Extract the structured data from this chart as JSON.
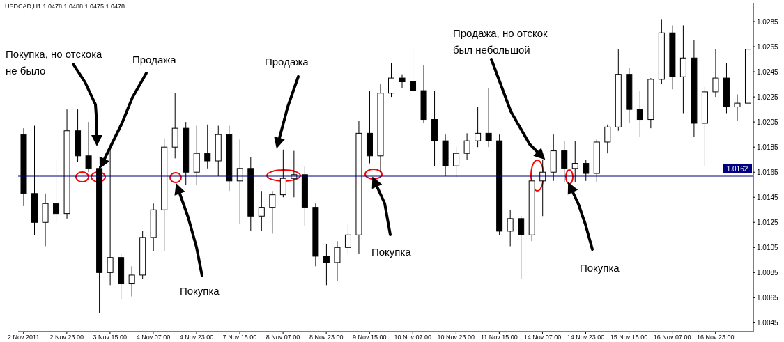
{
  "chart_data": {
    "type": "candlestick",
    "title": "USDCAD,H1  1.0478 1.0488 1.0475 1.0478",
    "categories": [
      "2 Nov 2011",
      null,
      null,
      null,
      "2 Nov 23:00",
      null,
      null,
      null,
      "3 Nov 15:00",
      null,
      null,
      null,
      "4 Nov 07:00",
      null,
      null,
      null,
      "4 Nov 23:00",
      null,
      null,
      null,
      "7 Nov 15:00",
      null,
      null,
      null,
      "8 Nov 07:00",
      null,
      null,
      null,
      "8 Nov 23:00",
      null,
      null,
      null,
      "9 Nov 15:00",
      null,
      null,
      null,
      "10 Nov 07:00",
      null,
      null,
      null,
      "10 Nov 23:00",
      null,
      null,
      null,
      "11 Nov 15:00",
      null,
      null,
      null,
      "14 Nov 07:00",
      null,
      null,
      null,
      "14 Nov 23:00",
      null,
      null,
      null,
      "15 Nov 15:00",
      null,
      null,
      null,
      "16 Nov 07:00",
      null,
      null,
      null,
      "16 Nov 23:00",
      null,
      null,
      null
    ],
    "ohlc": [
      [
        1.0195,
        1.02,
        1.0138,
        1.0148
      ],
      [
        1.0148,
        1.0202,
        1.0115,
        1.0125
      ],
      [
        1.0125,
        1.0148,
        1.0106,
        1.014
      ],
      [
        1.014,
        1.0174,
        1.0125,
        1.0132
      ],
      [
        1.0132,
        1.0215,
        1.0128,
        1.0198
      ],
      [
        1.0198,
        1.0215,
        1.0173,
        1.0178
      ],
      [
        1.0178,
        1.0205,
        1.0165,
        1.0168
      ],
      [
        1.0168,
        1.017,
        1.0053,
        1.0085
      ],
      [
        1.0085,
        1.0184,
        1.0075,
        1.0097
      ],
      [
        1.0097,
        1.01,
        1.0064,
        1.0076
      ],
      [
        1.0076,
        1.009,
        1.0066,
        1.0083
      ],
      [
        1.0083,
        1.0118,
        1.008,
        1.0113
      ],
      [
        1.0113,
        1.014,
        1.0102,
        1.0135
      ],
      [
        1.0135,
        1.0192,
        1.0102,
        1.0185
      ],
      [
        1.0185,
        1.0228,
        1.0176,
        1.02
      ],
      [
        1.02,
        1.0205,
        1.0155,
        1.0165
      ],
      [
        1.0165,
        1.0202,
        1.0155,
        1.018
      ],
      [
        1.018,
        1.0203,
        1.0168,
        1.0174
      ],
      [
        1.0174,
        1.0202,
        1.0162,
        1.0195
      ],
      [
        1.0195,
        1.0202,
        1.015,
        1.0158
      ],
      [
        1.0158,
        1.0191,
        1.0124,
        1.0168
      ],
      [
        1.0168,
        1.0177,
        1.0118,
        1.013
      ],
      [
        1.013,
        1.015,
        1.0118,
        1.0137
      ],
      [
        1.0137,
        1.015,
        1.0116,
        1.0147
      ],
      [
        1.0147,
        1.0183,
        1.0145,
        1.016
      ],
      [
        1.016,
        1.0182,
        1.0145,
        1.0163
      ],
      [
        1.0163,
        1.017,
        1.0122,
        1.0137
      ],
      [
        1.0137,
        1.014,
        1.009,
        1.0098
      ],
      [
        1.0098,
        1.0108,
        1.0075,
        1.0093
      ],
      [
        1.0093,
        1.011,
        1.0078,
        1.0105
      ],
      [
        1.0105,
        1.0124,
        1.01,
        1.0115
      ],
      [
        1.0115,
        1.0206,
        1.01,
        1.0196
      ],
      [
        1.0196,
        1.023,
        1.0172,
        1.0178
      ],
      [
        1.0178,
        1.0235,
        1.0165,
        1.0228
      ],
      [
        1.0228,
        1.0252,
        1.0225,
        1.024
      ],
      [
        1.024,
        1.0243,
        1.0232,
        1.0237
      ],
      [
        1.0237,
        1.0265,
        1.0228,
        1.023
      ],
      [
        1.023,
        1.025,
        1.0204,
        1.0207
      ],
      [
        1.0207,
        1.023,
        1.017,
        1.019
      ],
      [
        1.019,
        1.0195,
        1.0162,
        1.017
      ],
      [
        1.017,
        1.0185,
        1.0161,
        1.018
      ],
      [
        1.018,
        1.0196,
        1.0175,
        1.019
      ],
      [
        1.019,
        1.0217,
        1.0185,
        1.0196
      ],
      [
        1.0196,
        1.0232,
        1.0185,
        1.019
      ],
      [
        1.019,
        1.0195,
        1.0115,
        1.0118
      ],
      [
        1.0118,
        1.0135,
        1.0106,
        1.0128
      ],
      [
        1.0128,
        1.013,
        1.008,
        1.0115
      ],
      [
        1.0115,
        1.016,
        1.011,
        1.0158
      ],
      [
        1.0158,
        1.0175,
        1.013,
        1.0165
      ],
      [
        1.0165,
        1.0195,
        1.0158,
        1.0182
      ],
      [
        1.0182,
        1.019,
        1.0157,
        1.0168
      ],
      [
        1.0168,
        1.019,
        1.0157,
        1.0172
      ],
      [
        1.0172,
        1.0175,
        1.0158,
        1.0164
      ],
      [
        1.0164,
        1.0191,
        1.0157,
        1.0189
      ],
      [
        1.0189,
        1.0203,
        1.018,
        1.0201
      ],
      [
        1.0201,
        1.0263,
        1.0198,
        1.0243
      ],
      [
        1.0243,
        1.0248,
        1.0204,
        1.0215
      ],
      [
        1.0215,
        1.023,
        1.0193,
        1.0207
      ],
      [
        1.0207,
        1.024,
        1.02,
        1.0239
      ],
      [
        1.0239,
        1.0287,
        1.0235,
        1.0276
      ],
      [
        1.0276,
        1.0282,
        1.0231,
        1.0241
      ],
      [
        1.0241,
        1.0282,
        1.0212,
        1.0256
      ],
      [
        1.0256,
        1.027,
        1.0193,
        1.0204
      ],
      [
        1.0204,
        1.0233,
        1.017,
        1.0229
      ],
      [
        1.0229,
        1.0263,
        1.0225,
        1.024
      ],
      [
        1.024,
        1.0252,
        1.0212,
        1.0217
      ],
      [
        1.0217,
        1.0227,
        1.0206,
        1.022
      ],
      [
        1.022,
        1.0271,
        1.0215,
        1.0263
      ]
    ],
    "color": "#000000",
    "ylim": [
      1.0038,
      1.03
    ],
    "yticks": [
      1.0045,
      1.0065,
      1.0085,
      1.0105,
      1.0125,
      1.0145,
      1.0165,
      1.0185,
      1.0205,
      1.0225,
      1.0245,
      1.0265,
      1.0285
    ],
    "ref_lines": [
      {
        "axis": "y",
        "value": 1.0162,
        "label": "1.0162",
        "color": "#000080"
      }
    ],
    "annotations": [
      "Покупка, но отскока не было",
      "Продажа",
      "Покупка",
      "Продажа",
      "Покупка",
      "Продажа, но отскок был небольшой",
      "Покупка"
    ]
  }
}
